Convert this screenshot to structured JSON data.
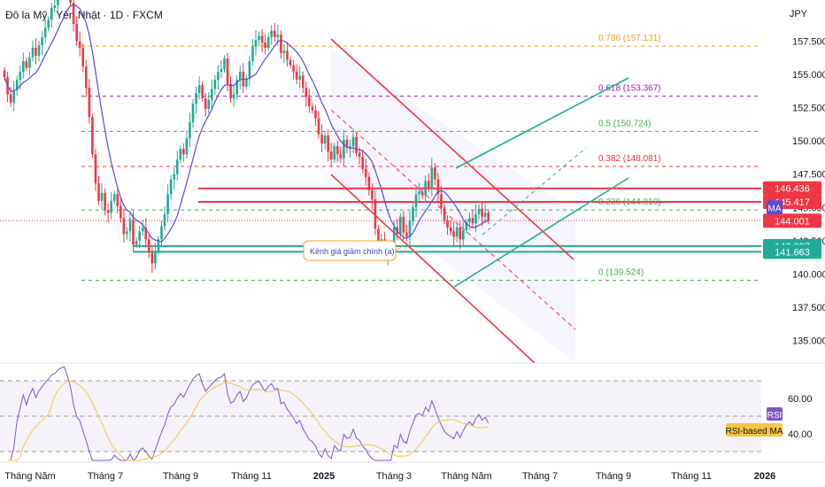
{
  "header": {
    "title": "Đô la Mỹ / Yên Nhật · 1D · FXCM",
    "currency": "JPY"
  },
  "chart_data": {
    "type": "candlestick",
    "instrument": "USD/JPY",
    "timeframe": "1D",
    "ylim": [
      133.3,
      160.6
    ],
    "y_ticks": [
      "157.500",
      "155.000",
      "152.500",
      "150.000",
      "147.500",
      "145.000",
      "142.500",
      "140.000",
      "137.500",
      "135.000"
    ],
    "y_tick_values": [
      157.5,
      155,
      152.5,
      150,
      147.5,
      145,
      142.5,
      140,
      137.5,
      135
    ],
    "x_ticks": [
      {
        "label": "Tháng Năm",
        "bold": false
      },
      {
        "label": "Tháng 7",
        "bold": false
      },
      {
        "label": "Tháng 9",
        "bold": false
      },
      {
        "label": "Tháng 11",
        "bold": false
      },
      {
        "label": "2025",
        "bold": true
      },
      {
        "label": "Tháng 3",
        "bold": false
      },
      {
        "label": "Tháng Năm",
        "bold": false
      },
      {
        "label": "Tháng 7",
        "bold": false
      },
      {
        "label": "Tháng 9",
        "bold": false
      },
      {
        "label": "Tháng 11",
        "bold": false
      },
      {
        "label": "2026",
        "bold": true
      }
    ],
    "close_path": [
      [
        154.8,
        153.5,
        152.9,
        153.8,
        154.6,
        155.2,
        156.0,
        155.5,
        156.3,
        157.0,
        156.4,
        157.2,
        157.8,
        158.5,
        159.1,
        160.0,
        160.2,
        161.0,
        161.5,
        161.8,
        161.2,
        160.4,
        158.8,
        157.5,
        157.0,
        155.6,
        154.0,
        151.8,
        149.0,
        146.8,
        145.5,
        146.1,
        144.8,
        144.6,
        145.5,
        146.0,
        145.1,
        144.2,
        143.0,
        143.2,
        144.1,
        142.2,
        142.5,
        143.2,
        143.5,
        142.6,
        141.6,
        140.8,
        141.7,
        142.6,
        143.6,
        144.5,
        146.0,
        147.1,
        147.5,
        148.6,
        149.4,
        149.0,
        150.2,
        151.4,
        152.8,
        153.6,
        154.2,
        153.2,
        152.4,
        153.1,
        153.9,
        154.6,
        155.2,
        155.4,
        156.2,
        154.3,
        153.2,
        153.5,
        154.6,
        155.2,
        154.1,
        154.7,
        156.0,
        157.1,
        157.6,
        157.9,
        157.4,
        157.0,
        157.8,
        158.3,
        157.8,
        158.0,
        156.6,
        156.8,
        156.1,
        155.7,
        155.2,
        154.6,
        154.9,
        154.0,
        153.3,
        152.6,
        152.3,
        151.7,
        150.5,
        149.8,
        150.4,
        149.2,
        148.6,
        149.6,
        149.0,
        148.7,
        150.1,
        149.5,
        149.6,
        150.3,
        149.1,
        148.8,
        147.9,
        147.3,
        146.3,
        145.6,
        143.4,
        142.4,
        142.6,
        141.3,
        141.6,
        142.2,
        143.5,
        143.0,
        144.3,
        143.1,
        142.8,
        144.0,
        145.0,
        146.0,
        146.2,
        145.9,
        147.0,
        146.5,
        148.0,
        147.1,
        146.0,
        145.0,
        144.0,
        143.5,
        143.2,
        142.8,
        143.5,
        142.6,
        143.3,
        143.9,
        144.2,
        143.8,
        144.5,
        144.9,
        144.3,
        144.6,
        144.0
      ]
    ],
    "ma_label": "MA",
    "fib_levels": [
      {
        "ratio": "0.786",
        "value": 157.131,
        "label": "0.786 (157.131)",
        "color": "#f5a623"
      },
      {
        "ratio": "0.618",
        "value": 153.367,
        "label": "0.618 (153.367)",
        "color": "#9c27b0"
      },
      {
        "ratio": "0.5",
        "value": 150.724,
        "label": "0.5 (150.724)",
        "color": "#4caf50"
      },
      {
        "ratio": "0.382",
        "value": 148.081,
        "label": "0.382 (148.081)",
        "color": "#f23645"
      },
      {
        "ratio": "0.236",
        "value": 144.81,
        "label": "0.236 (144.810)",
        "color": "#4caf50"
      },
      {
        "ratio": "0",
        "value": 139.524,
        "label": "0 (139.524)",
        "color": "#4caf50"
      }
    ],
    "horizontal_lines": [
      {
        "value": 146.436,
        "color": "#f23645"
      },
      {
        "value": 145.417,
        "color": "#f23645"
      },
      {
        "value": 142.097,
        "color": "#22ab94"
      },
      {
        "value": 141.663,
        "color": "#22ab94"
      }
    ],
    "price_labels": [
      {
        "text": "146.436",
        "value": 146.436,
        "bg": "#f23645"
      },
      {
        "text": "145.417",
        "value": 145.417,
        "bg": "#f23645"
      },
      {
        "text": "144.001",
        "value": 144.001,
        "bg": "#f23645"
      },
      {
        "text": "142.097",
        "value": 142.097,
        "bg": "#22ab94"
      },
      {
        "text": "141.663",
        "value": 141.663,
        "bg": "#22ab94"
      }
    ],
    "annotation": "Kênh giá giảm chính (a)",
    "rsi": {
      "label": "RSI",
      "ma_label": "RSI-based MA",
      "ylim": [
        25,
        80
      ],
      "y_ticks": [
        "60.00",
        "40.00"
      ],
      "y_tick_values": [
        60,
        40
      ],
      "upper_band": 70,
      "mid_band": 50,
      "lower_band": 30
    }
  }
}
